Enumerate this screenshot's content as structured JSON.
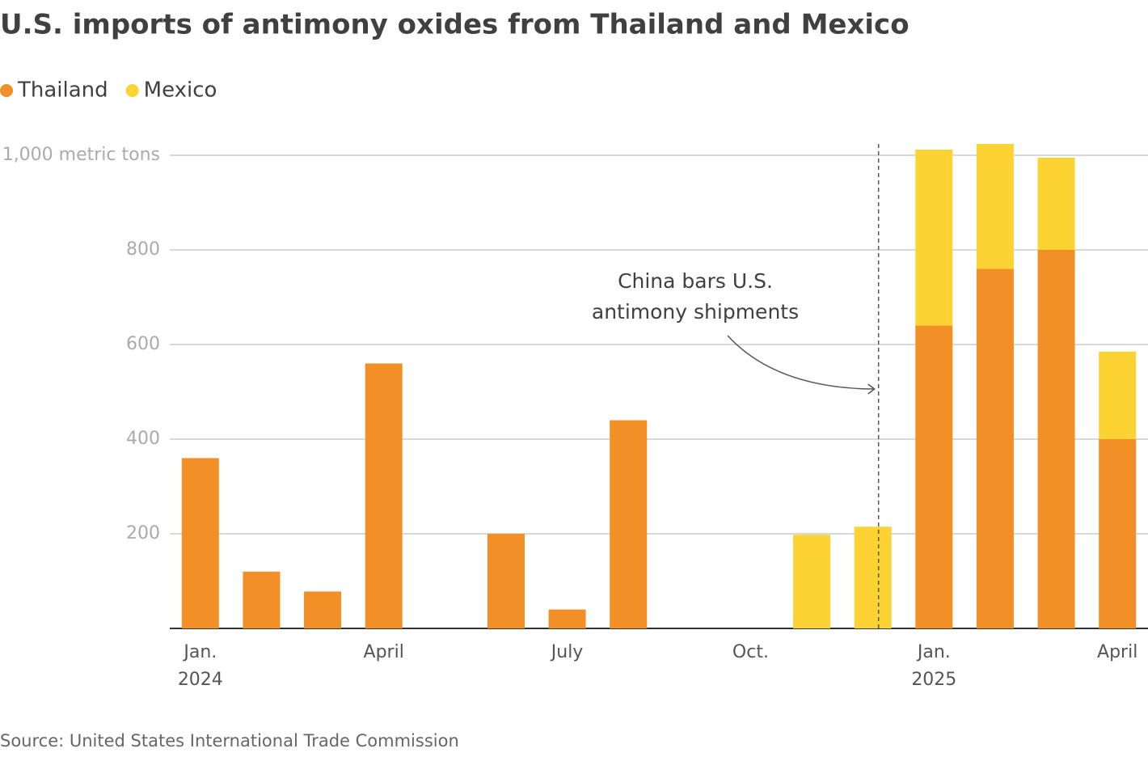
{
  "chart_data": {
    "type": "stacked-bar",
    "title": "U.S. imports of antimony oxides from Thailand and Mexico",
    "categories": [
      "Jan.",
      null,
      null,
      "April",
      null,
      null,
      "July",
      null,
      null,
      "Oct.",
      null,
      null,
      "Jan.",
      null,
      null,
      "April"
    ],
    "years": [
      "2024",
      null,
      null,
      null,
      null,
      null,
      null,
      null,
      null,
      null,
      null,
      null,
      "2025",
      null,
      null,
      null
    ],
    "series": [
      {
        "name": "Thailand",
        "color": "#f28f27",
        "values": [
          360,
          120,
          78,
          560,
          0,
          200,
          40,
          440,
          0,
          0,
          0,
          0,
          640,
          760,
          800,
          400
        ]
      },
      {
        "name": "Mexico",
        "color": "#fdd333",
        "values": [
          0,
          0,
          0,
          0,
          0,
          0,
          0,
          0,
          0,
          0,
          198,
          215,
          372,
          264,
          195,
          185
        ]
      }
    ],
    "ylim": [
      0,
      1050
    ],
    "yticks": [
      200,
      400,
      600,
      800,
      {
        "value": 1000,
        "label": "1,000 metric tons"
      }
    ],
    "grid": true,
    "annotation": [
      "China bars U.S.",
      "antimony shipments"
    ],
    "source": "Source: United States International Trade Commission"
  }
}
